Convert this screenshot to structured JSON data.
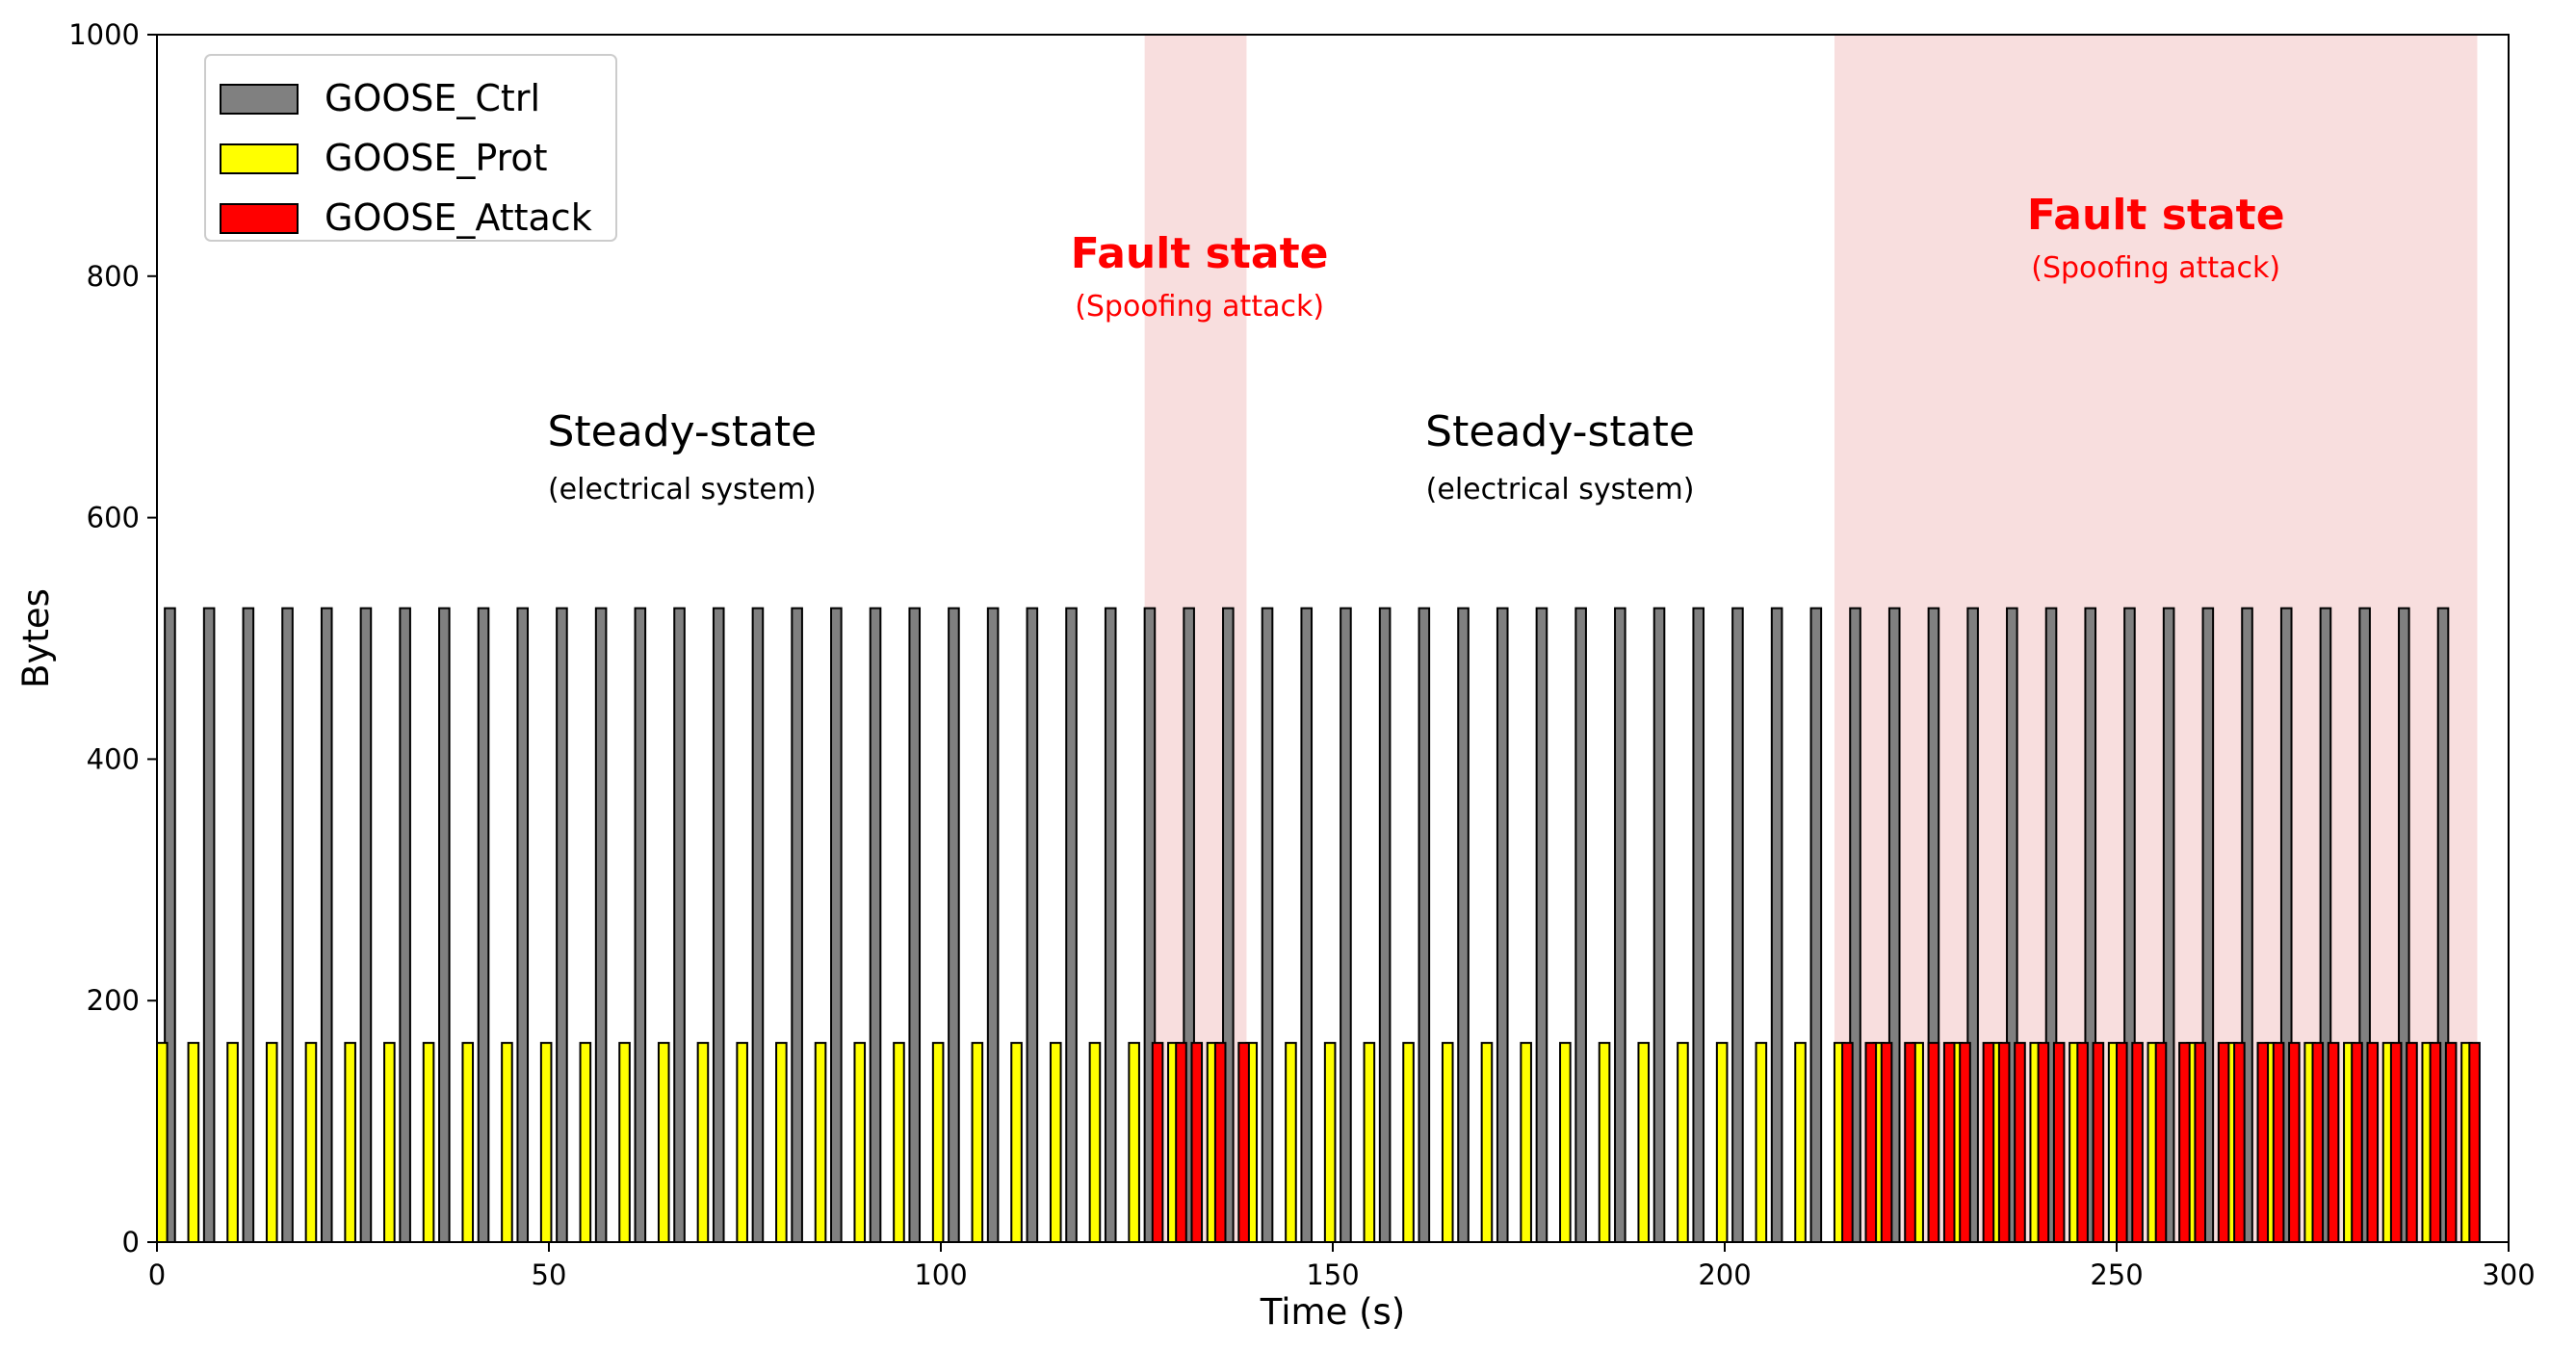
{
  "chart_data": {
    "type": "bar",
    "xlabel": "Time (s)",
    "ylabel": "Bytes",
    "xlim": [
      0,
      300
    ],
    "ylim": [
      0,
      1000
    ],
    "xticks": [
      "0",
      "50",
      "100",
      "150",
      "200",
      "250",
      "300"
    ],
    "yticks": [
      "0",
      "200",
      "400",
      "600",
      "800",
      "1000"
    ],
    "grid": false,
    "legend": {
      "position": "top-left",
      "entries": [
        {
          "name": "GOOSE_Ctrl",
          "color": "#808080"
        },
        {
          "name": "GOOSE_Prot",
          "color": "#ffff00"
        },
        {
          "name": "GOOSE_Attack",
          "color": "#ff0000"
        }
      ]
    },
    "shaded_regions": [
      {
        "x_start": 126,
        "x_end": 139,
        "color": "#f8dede"
      },
      {
        "x_start": 214,
        "x_end": 296,
        "color": "#f8dede"
      }
    ],
    "annotations": [
      {
        "x": 67,
        "text": "Steady-state",
        "subtext": "(electrical system)",
        "color": "#000000",
        "bold": false
      },
      {
        "x": 179,
        "text": "Steady-state",
        "subtext": "(electrical system)",
        "color": "#000000",
        "bold": false
      },
      {
        "x": 133,
        "text": "Fault state",
        "subtext": "(Spoofing attack)",
        "color": "#ff0000",
        "bold": true
      },
      {
        "x": 255,
        "text": "Fault state",
        "subtext": "(Spoofing attack)",
        "color": "#ff0000",
        "bold": true
      }
    ],
    "bar_width": 1.3,
    "series": [
      {
        "name": "GOOSE_Ctrl",
        "color": "#808080",
        "value": 525,
        "x": [
          1,
          6,
          11,
          16,
          21,
          26,
          31,
          36,
          41,
          46,
          51,
          56,
          61,
          66,
          71,
          76,
          81,
          86,
          91,
          96,
          101,
          106,
          111,
          116,
          121,
          126,
          131,
          136,
          141,
          146,
          151,
          156,
          161,
          166,
          171,
          176,
          181,
          186,
          191,
          196,
          201,
          206,
          211,
          216,
          221,
          226,
          231,
          236,
          241,
          246,
          251,
          256,
          261,
          266,
          271,
          276,
          281,
          286,
          291
        ]
      },
      {
        "name": "GOOSE_Prot",
        "color": "#ffff00",
        "value": 165,
        "x": [
          0,
          4,
          9,
          14,
          19,
          24,
          29,
          34,
          39,
          44,
          49,
          54,
          59,
          64,
          69,
          74,
          79,
          84,
          89,
          94,
          99,
          104,
          109,
          114,
          119,
          124,
          129,
          134,
          139,
          144,
          149,
          154,
          159,
          164,
          169,
          174,
          179,
          184,
          189,
          194,
          199,
          204,
          209,
          214,
          219,
          224,
          229,
          234,
          239,
          244,
          249,
          254,
          259,
          264,
          269,
          274,
          279,
          284,
          289,
          294
        ]
      },
      {
        "name": "GOOSE_Attack",
        "color": "#ff0000",
        "value": 165,
        "x": [
          127,
          130,
          132,
          135,
          138,
          215,
          218,
          220,
          223,
          226,
          228,
          230,
          233,
          235,
          237,
          240,
          242,
          245,
          247,
          250,
          252,
          255,
          258,
          260,
          263,
          265,
          268,
          270,
          272,
          275,
          277,
          280,
          282,
          285,
          287,
          290,
          292,
          295
        ]
      }
    ]
  }
}
